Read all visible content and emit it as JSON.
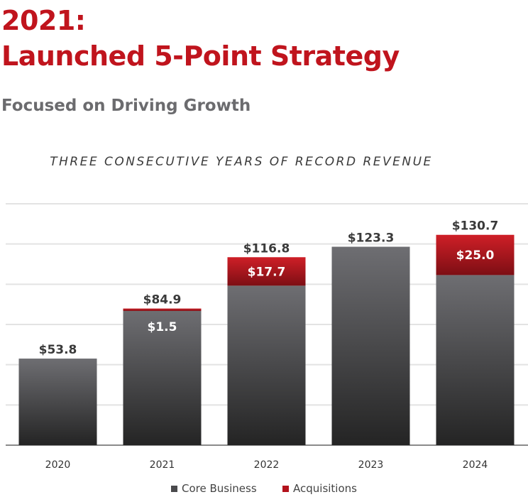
{
  "header": {
    "title_line1": "2021:",
    "title_line2": "Launched 5-Point Strategy",
    "subtitle": "Focused on Driving Growth"
  },
  "chart_data": {
    "type": "bar",
    "stacked": true,
    "title": "THREE CONSECUTIVE YEARS OF RECORD REVENUE",
    "categories": [
      "2020",
      "2021",
      "2022",
      "2023",
      "2024"
    ],
    "series": [
      {
        "name": "Core Business",
        "values": [
          53.8,
          83.4,
          99.1,
          123.3,
          105.7
        ],
        "color": "#5a5a5e"
      },
      {
        "name": "Acquisitions",
        "values": [
          0,
          1.5,
          17.7,
          0,
          25.0
        ],
        "color": "#b3121c"
      }
    ],
    "total_labels": [
      "$53.8",
      "$84.9",
      "$116.8",
      "$123.3",
      "$130.7"
    ],
    "segment_labels": [
      "",
      "$1.5",
      "$17.7",
      "",
      "$25.0"
    ],
    "ylim": [
      0,
      150
    ],
    "grid": true,
    "legend": "bottom"
  }
}
